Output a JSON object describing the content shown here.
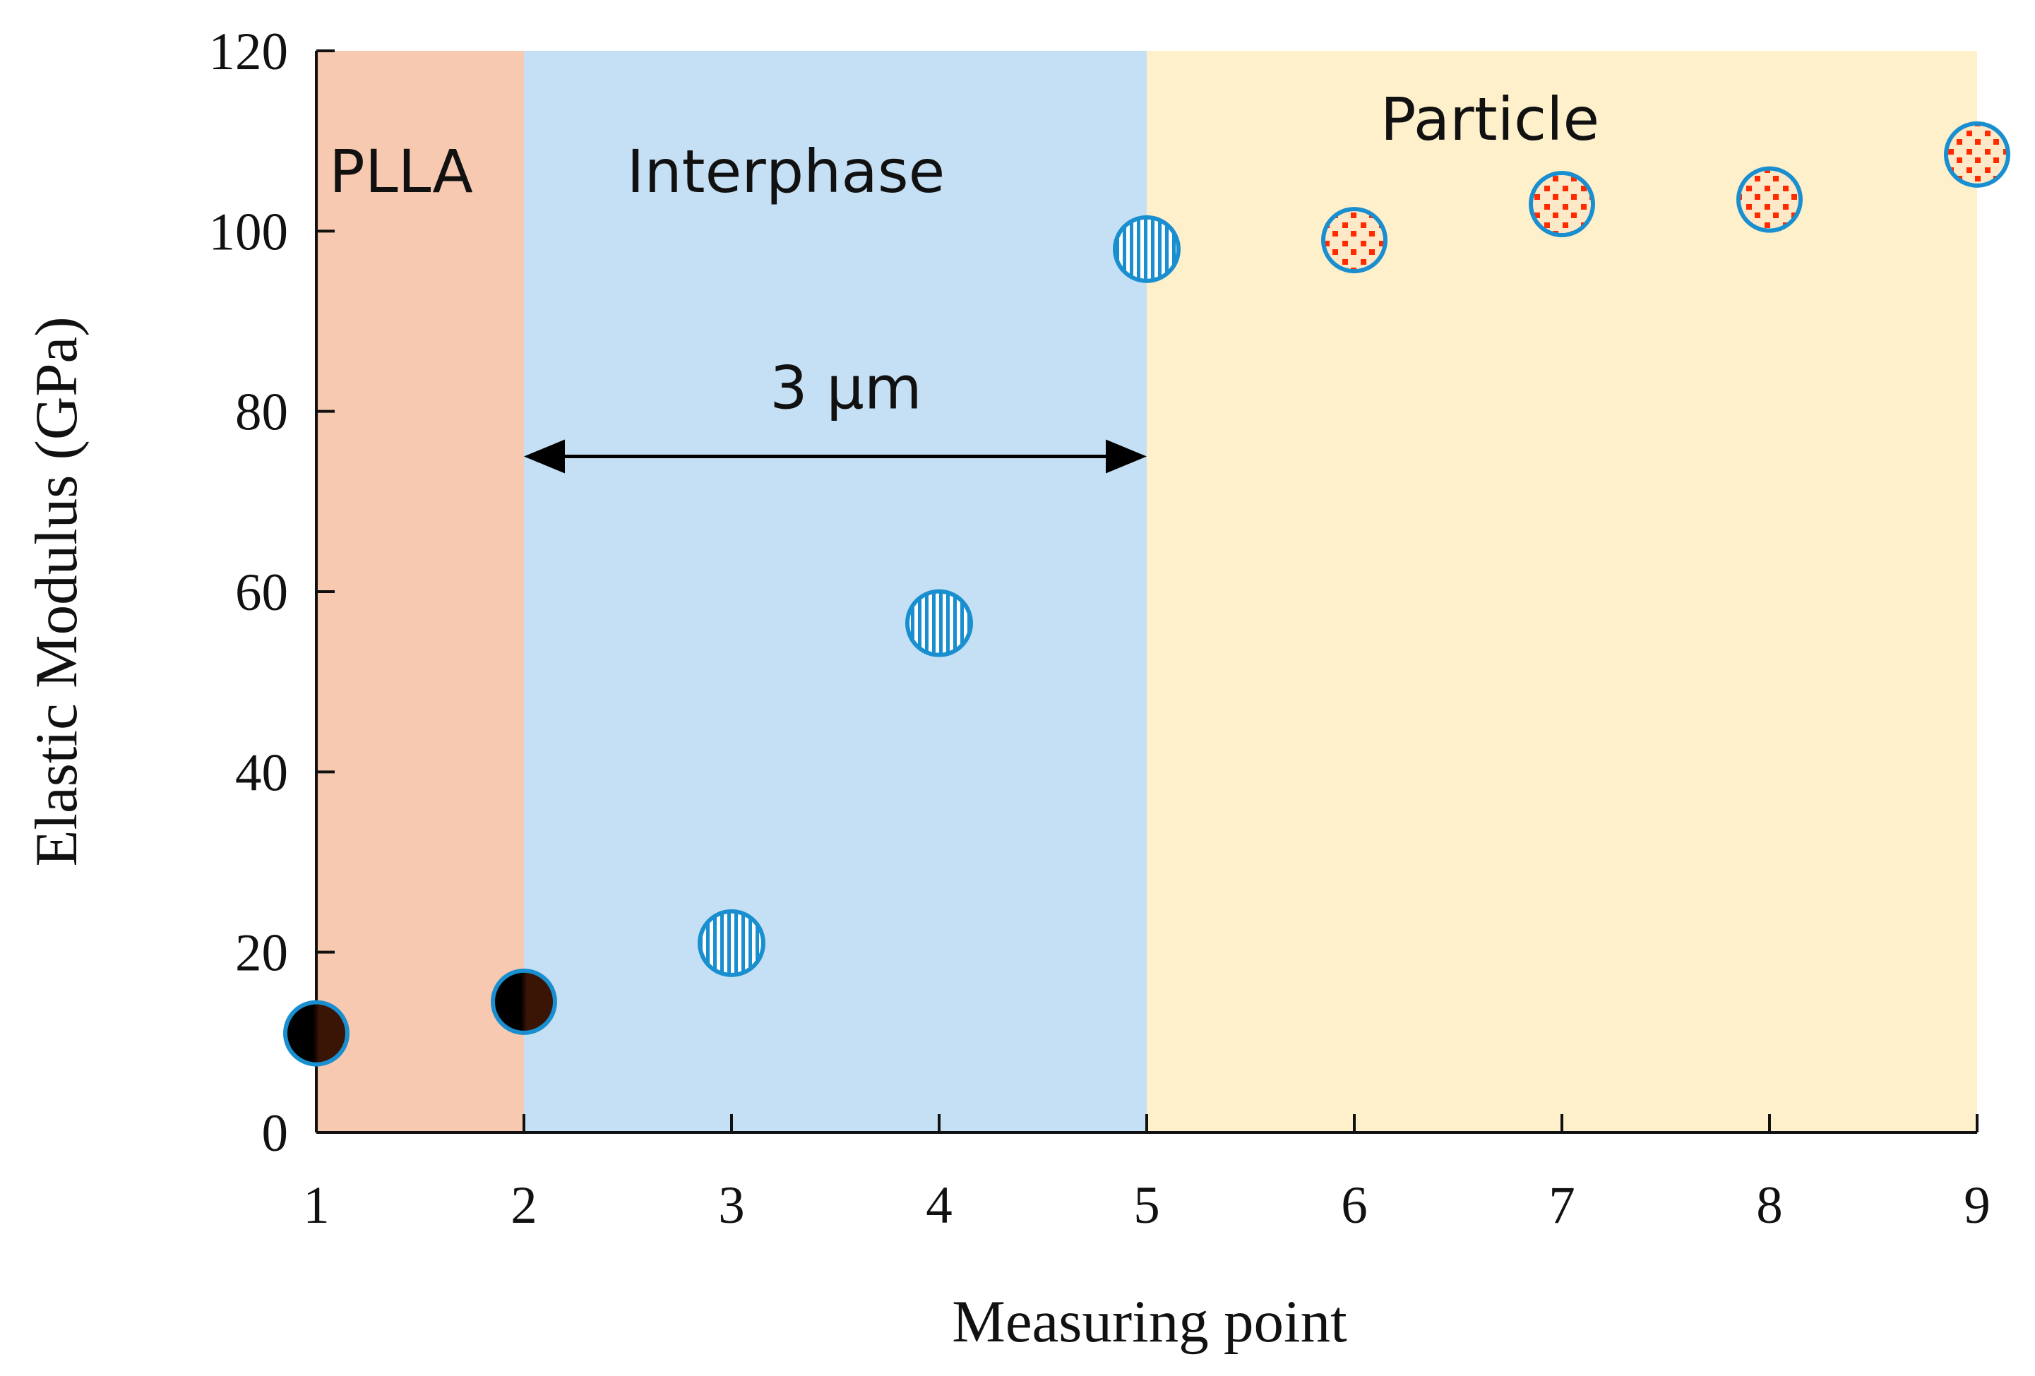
{
  "chart_data": {
    "type": "scatter",
    "title": "",
    "xlabel": "Measuring point",
    "ylabel": "Elastic Modulus (GPa)",
    "xlim": [
      1,
      9
    ],
    "ylim": [
      0,
      120
    ],
    "xticks": [
      1,
      2,
      3,
      4,
      5,
      6,
      7,
      8,
      9
    ],
    "yticks": [
      0,
      20,
      40,
      60,
      80,
      100,
      120
    ],
    "grid": false,
    "regions": [
      {
        "label": "PLLA",
        "x_from": 1,
        "x_to": 2,
        "color": "#f7c9b0"
      },
      {
        "label": "Interphase",
        "x_from": 2,
        "x_to": 5,
        "color": "#c5e0f4"
      },
      {
        "label": "Particle",
        "x_from": 5,
        "x_to": 9,
        "color": "#fdf0cb"
      }
    ],
    "annotation": {
      "label": "3 μm",
      "x_from": 2,
      "x_to": 5,
      "y": 75
    },
    "points": [
      {
        "x": 1,
        "y": 11,
        "phase": "PLLA"
      },
      {
        "x": 2,
        "y": 14.5,
        "phase": "PLLA"
      },
      {
        "x": 3,
        "y": 21,
        "phase": "Interphase"
      },
      {
        "x": 4,
        "y": 56.5,
        "phase": "Interphase"
      },
      {
        "x": 5,
        "y": 98,
        "phase": "Interphase"
      },
      {
        "x": 6,
        "y": 99,
        "phase": "Particle"
      },
      {
        "x": 7,
        "y": 103,
        "phase": "Particle"
      },
      {
        "x": 8,
        "y": 103.5,
        "phase": "Particle"
      },
      {
        "x": 9,
        "y": 108.5,
        "phase": "Particle"
      }
    ],
    "colors": {
      "marker_edge": "#1a8fd0",
      "plla_fill_dark": "#000000",
      "plla_fill_brown": "#3a1506",
      "interphase_stripe": "#1a8fd0",
      "particle_dot": "#ff2a00",
      "particle_fill": "#fde8c8"
    }
  }
}
